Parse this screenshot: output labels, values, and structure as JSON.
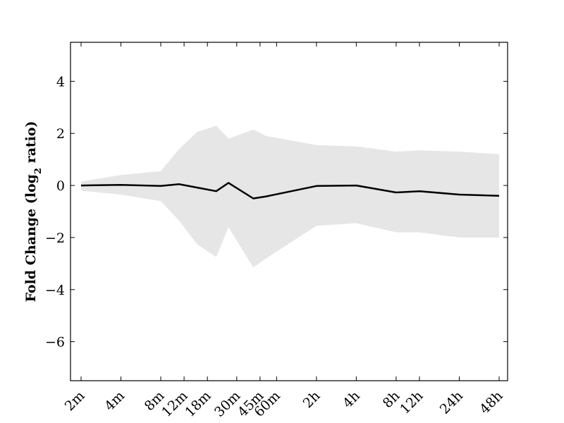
{
  "chart_data": {
    "type": "line",
    "title": "",
    "xlabel": "",
    "ylabel": "Fold Change (log",
    "ylabel_sub": "2",
    "ylabel_tail": " ratio)",
    "ylim": [
      -7.5,
      5.5
    ],
    "yticks": [
      4,
      2,
      0,
      -2,
      -4,
      -6
    ],
    "ytick_labels": [
      "4",
      "2",
      "0",
      "−2",
      "−4",
      "−6"
    ],
    "x_minutes": [
      2,
      4,
      8,
      12,
      18,
      30,
      45,
      60,
      120,
      240,
      480,
      720,
      1440,
      2880
    ],
    "xtick_labels": [
      "2m",
      "4m",
      "8m",
      "12m",
      "18m",
      "30m",
      "45m",
      "60m",
      "2h",
      "4h",
      "8h",
      "12h",
      "24h",
      "48h"
    ],
    "x_scale": "log",
    "grid": false,
    "series": [
      {
        "line_color": "#000000",
        "x": [
          2,
          4,
          8,
          11,
          15,
          21,
          26,
          40,
          50,
          120,
          240,
          480,
          720,
          1440,
          2880
        ],
        "y": [
          0.0,
          0.02,
          -0.02,
          0.05,
          -0.08,
          -0.22,
          0.1,
          -0.5,
          -0.42,
          -0.02,
          0.0,
          -0.27,
          -0.22,
          -0.35,
          -0.4
        ]
      }
    ],
    "band": {
      "fill_color": "#e6e6e6",
      "x": [
        2,
        4,
        8,
        11,
        15,
        21,
        26,
        40,
        50,
        120,
        240,
        480,
        720,
        1440,
        2880
      ],
      "upper": [
        0.15,
        0.4,
        0.55,
        1.4,
        2.05,
        2.3,
        1.8,
        2.15,
        1.9,
        1.55,
        1.5,
        1.3,
        1.35,
        1.3,
        1.2
      ],
      "lower": [
        -0.2,
        -0.35,
        -0.6,
        -1.35,
        -2.25,
        -2.75,
        -1.6,
        -3.15,
        -2.8,
        -1.55,
        -1.45,
        -1.8,
        -1.8,
        -2.0,
        -2.0
      ]
    }
  }
}
